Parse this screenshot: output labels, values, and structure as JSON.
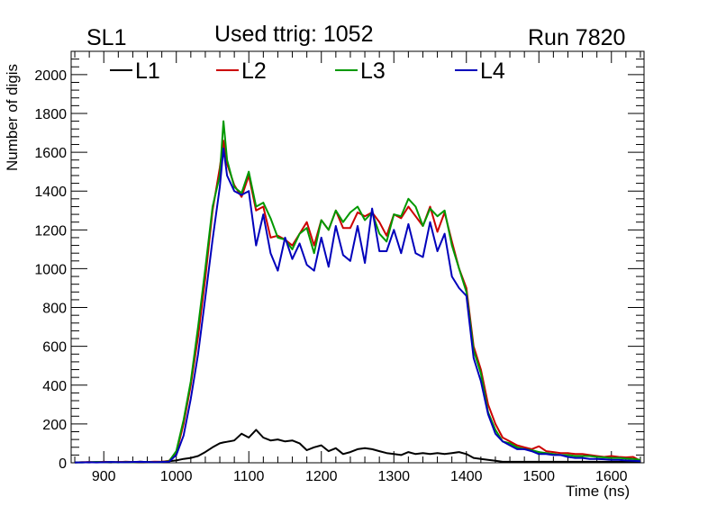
{
  "header": {
    "left": "SL1",
    "center": "Used ttrig: 1052",
    "right": "Run 7820"
  },
  "chart_data": {
    "type": "line",
    "xlabel": "Time (ns)",
    "ylabel": "Number of digis",
    "xlim": [
      855,
      1645
    ],
    "ylim": [
      0,
      2120
    ],
    "x_ticks": [
      900,
      1000,
      1100,
      1200,
      1300,
      1400,
      1500,
      1600
    ],
    "y_ticks": [
      0,
      200,
      400,
      600,
      800,
      1000,
      1200,
      1400,
      1600,
      1800,
      2000
    ],
    "x_tick_labels": [
      "900",
      "1000",
      "1100",
      "1200",
      "1300",
      "1400",
      "1500",
      "1600"
    ],
    "y_tick_labels": [
      "0",
      "200",
      "400",
      "600",
      "800",
      "1000",
      "1200",
      "1400",
      "1600",
      "1800",
      "2000"
    ],
    "grid": false,
    "legend_placement": "top",
    "x": [
      860,
      870,
      880,
      890,
      900,
      910,
      920,
      930,
      940,
      950,
      960,
      970,
      980,
      990,
      1000,
      1010,
      1020,
      1030,
      1040,
      1050,
      1060,
      1065,
      1070,
      1080,
      1090,
      1100,
      1110,
      1120,
      1130,
      1140,
      1150,
      1160,
      1170,
      1180,
      1190,
      1200,
      1210,
      1220,
      1230,
      1240,
      1250,
      1260,
      1270,
      1280,
      1290,
      1300,
      1310,
      1320,
      1330,
      1340,
      1350,
      1360,
      1370,
      1380,
      1390,
      1400,
      1410,
      1420,
      1430,
      1440,
      1450,
      1460,
      1470,
      1480,
      1490,
      1500,
      1510,
      1520,
      1530,
      1540,
      1550,
      1560,
      1570,
      1580,
      1590,
      1600,
      1610,
      1620,
      1630,
      1640
    ],
    "series": [
      {
        "name": "L1",
        "color": "#000000",
        "values": [
          2,
          3,
          2,
          4,
          3,
          2,
          4,
          3,
          3,
          5,
          4,
          3,
          5,
          8,
          12,
          20,
          25,
          35,
          55,
          80,
          100,
          105,
          108,
          115,
          150,
          130,
          170,
          130,
          115,
          120,
          110,
          115,
          100,
          65,
          80,
          90,
          60,
          75,
          45,
          55,
          70,
          75,
          70,
          60,
          50,
          45,
          40,
          55,
          45,
          50,
          45,
          50,
          45,
          50,
          55,
          45,
          25,
          20,
          15,
          10,
          5,
          5,
          5,
          5,
          5,
          5,
          5,
          5,
          5,
          5,
          5,
          5,
          5,
          5,
          5,
          5,
          5,
          5,
          5,
          5
        ]
      },
      {
        "name": "L2",
        "color": "#cc0000",
        "values": [
          2,
          3,
          4,
          3,
          5,
          4,
          3,
          6,
          4,
          5,
          4,
          6,
          5,
          10,
          50,
          200,
          400,
          650,
          950,
          1300,
          1520,
          1660,
          1540,
          1430,
          1370,
          1480,
          1300,
          1320,
          1160,
          1170,
          1150,
          1120,
          1180,
          1240,
          1120,
          1250,
          1200,
          1300,
          1210,
          1210,
          1290,
          1270,
          1290,
          1240,
          1170,
          1280,
          1260,
          1320,
          1270,
          1220,
          1320,
          1190,
          1290,
          1140,
          1000,
          900,
          600,
          480,
          300,
          200,
          130,
          110,
          90,
          80,
          70,
          85,
          60,
          55,
          50,
          50,
          45,
          45,
          40,
          35,
          30,
          35,
          30,
          28,
          30,
          10
        ]
      },
      {
        "name": "L3",
        "color": "#009900",
        "values": [
          2,
          2,
          3,
          4,
          3,
          4,
          2,
          4,
          3,
          5,
          4,
          3,
          4,
          8,
          60,
          220,
          420,
          700,
          1000,
          1320,
          1480,
          1760,
          1560,
          1420,
          1390,
          1500,
          1320,
          1340,
          1260,
          1160,
          1150,
          1100,
          1180,
          1210,
          1080,
          1250,
          1200,
          1300,
          1240,
          1290,
          1320,
          1250,
          1290,
          1180,
          1140,
          1280,
          1270,
          1360,
          1320,
          1220,
          1310,
          1270,
          1300,
          1120,
          1000,
          880,
          580,
          460,
          260,
          170,
          110,
          100,
          80,
          70,
          65,
          55,
          50,
          45,
          40,
          40,
          35,
          35,
          35,
          30,
          28,
          25,
          25,
          22,
          20,
          15
        ]
      },
      {
        "name": "L4",
        "color": "#0000bb",
        "values": [
          2,
          2,
          3,
          2,
          3,
          4,
          3,
          3,
          4,
          5,
          4,
          3,
          4,
          6,
          40,
          140,
          330,
          560,
          850,
          1150,
          1420,
          1620,
          1480,
          1400,
          1380,
          1400,
          1120,
          1280,
          1080,
          990,
          1160,
          1050,
          1130,
          1020,
          990,
          1160,
          1010,
          1220,
          1070,
          1040,
          1220,
          1030,
          1310,
          1090,
          1090,
          1200,
          1080,
          1230,
          1080,
          1060,
          1240,
          1090,
          1180,
          960,
          900,
          860,
          540,
          420,
          250,
          150,
          110,
          90,
          70,
          70,
          60,
          45,
          45,
          40,
          40,
          30,
          25,
          25,
          20,
          20,
          18,
          15,
          15,
          12,
          10,
          8
        ]
      }
    ]
  }
}
